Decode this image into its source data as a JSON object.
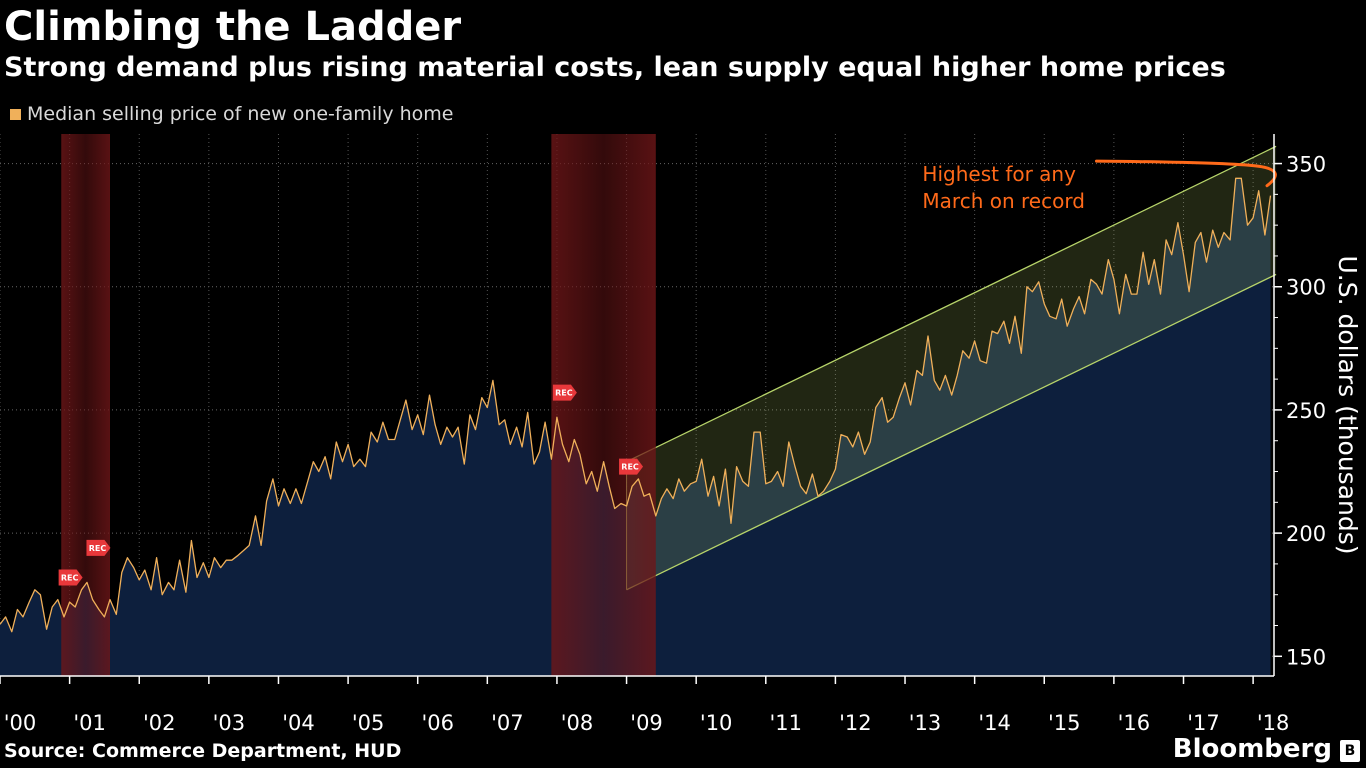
{
  "title": "Climbing the Ladder",
  "subtitle": "Strong demand plus rising material costs, lean supply equal higher home prices",
  "source": "Source: Commerce Department, HUD",
  "brand": "Bloomberg",
  "brand_icon": "B",
  "colors": {
    "line": "#f0b05a",
    "area": "#0d1f3d",
    "recession": "#6e1618",
    "channel": "#b7d46a",
    "annotation": "#ff6a1a",
    "rec_badge": "#e8383b"
  },
  "chart_data": {
    "type": "line",
    "legend": [
      {
        "label": "Median selling price of new one-family home",
        "color": "#f0b05a"
      }
    ],
    "ylabel": "U.S. dollars (thousands)",
    "ylim": [
      142,
      362
    ],
    "yticks": [
      150,
      200,
      250,
      300,
      350
    ],
    "xlim": [
      2000.0,
      2018.3
    ],
    "xticks": [
      "'00",
      "'01",
      "'02",
      "'03",
      "'04",
      "'05",
      "'06",
      "'07",
      "'08",
      "'09",
      "'10",
      "'11",
      "'12",
      "'13",
      "'14",
      "'15",
      "'16",
      "'17",
      "'18"
    ],
    "recessions": [
      [
        2000.88,
        2001.58
      ],
      [
        2007.92,
        2009.42
      ]
    ],
    "rec_markers": [
      {
        "x": 2001.0,
        "y": 182,
        "label": "REC"
      },
      {
        "x": 2001.4,
        "y": 194,
        "label": "REC"
      },
      {
        "x": 2008.1,
        "y": 257,
        "label": "REC"
      },
      {
        "x": 2009.05,
        "y": 227,
        "label": "REC"
      }
    ],
    "channel": {
      "x": [
        2009.0,
        2018.33
      ],
      "upper": [
        229,
        357
      ],
      "lower": [
        177,
        305
      ]
    },
    "annotation": {
      "text_lines": [
        "Highest for any",
        "March on record"
      ],
      "x": 2013.25,
      "y": 343
    },
    "series": [
      {
        "name": "Median selling price of new one-family home",
        "x": [
          2000.0,
          2000.08,
          2000.17,
          2000.25,
          2000.33,
          2000.42,
          2000.5,
          2000.58,
          2000.67,
          2000.75,
          2000.83,
          2000.92,
          2001.0,
          2001.08,
          2001.17,
          2001.25,
          2001.33,
          2001.42,
          2001.5,
          2001.58,
          2001.67,
          2001.75,
          2001.83,
          2001.92,
          2002.0,
          2002.08,
          2002.17,
          2002.25,
          2002.33,
          2002.42,
          2002.5,
          2002.58,
          2002.67,
          2002.75,
          2002.83,
          2002.92,
          2003.0,
          2003.08,
          2003.17,
          2003.25,
          2003.33,
          2003.42,
          2003.5,
          2003.58,
          2003.67,
          2003.75,
          2003.83,
          2003.92,
          2004.0,
          2004.08,
          2004.17,
          2004.25,
          2004.33,
          2004.42,
          2004.5,
          2004.58,
          2004.67,
          2004.75,
          2004.83,
          2004.92,
          2005.0,
          2005.08,
          2005.17,
          2005.25,
          2005.33,
          2005.42,
          2005.5,
          2005.58,
          2005.67,
          2005.75,
          2005.83,
          2005.92,
          2006.0,
          2006.08,
          2006.17,
          2006.25,
          2006.33,
          2006.42,
          2006.5,
          2006.58,
          2006.67,
          2006.75,
          2006.83,
          2006.92,
          2007.0,
          2007.08,
          2007.17,
          2007.25,
          2007.33,
          2007.42,
          2007.5,
          2007.58,
          2007.67,
          2007.75,
          2007.83,
          2007.92,
          2008.0,
          2008.08,
          2008.17,
          2008.25,
          2008.33,
          2008.42,
          2008.5,
          2008.58,
          2008.67,
          2008.75,
          2008.83,
          2008.92,
          2009.0,
          2009.08,
          2009.17,
          2009.25,
          2009.33,
          2009.42,
          2009.5,
          2009.58,
          2009.67,
          2009.75,
          2009.83,
          2009.92,
          2010.0,
          2010.08,
          2010.17,
          2010.25,
          2010.33,
          2010.42,
          2010.5,
          2010.58,
          2010.67,
          2010.75,
          2010.83,
          2010.92,
          2011.0,
          2011.08,
          2011.17,
          2011.25,
          2011.33,
          2011.42,
          2011.5,
          2011.58,
          2011.67,
          2011.75,
          2011.83,
          2011.92,
          2012.0,
          2012.08,
          2012.17,
          2012.25,
          2012.33,
          2012.42,
          2012.5,
          2012.58,
          2012.67,
          2012.75,
          2012.83,
          2012.92,
          2013.0,
          2013.08,
          2013.17,
          2013.25,
          2013.33,
          2013.42,
          2013.5,
          2013.58,
          2013.67,
          2013.75,
          2013.83,
          2013.92,
          2014.0,
          2014.08,
          2014.17,
          2014.25,
          2014.33,
          2014.42,
          2014.5,
          2014.58,
          2014.67,
          2014.75,
          2014.83,
          2014.92,
          2015.0,
          2015.08,
          2015.17,
          2015.25,
          2015.33,
          2015.42,
          2015.5,
          2015.58,
          2015.67,
          2015.75,
          2015.83,
          2015.92,
          2016.0,
          2016.08,
          2016.17,
          2016.25,
          2016.33,
          2016.42,
          2016.5,
          2016.58,
          2016.67,
          2016.75,
          2016.83,
          2016.92,
          2017.0,
          2017.08,
          2017.17,
          2017.25,
          2017.33,
          2017.42,
          2017.5,
          2017.58,
          2017.67,
          2017.75,
          2017.83,
          2017.92,
          2018.0,
          2018.08,
          2018.17,
          2018.25
        ],
        "values": [
          163,
          166,
          160,
          169,
          166,
          172,
          177,
          175,
          161,
          170,
          173,
          166,
          172,
          170,
          177,
          180,
          173,
          169,
          166,
          173,
          167,
          184,
          190,
          186,
          181,
          185,
          177,
          190,
          175,
          180,
          177,
          189,
          176,
          197,
          182,
          188,
          182,
          190,
          186,
          189,
          189,
          191,
          193,
          195,
          207,
          195,
          213,
          222,
          211,
          218,
          212,
          218,
          212,
          221,
          229,
          225,
          231,
          222,
          237,
          229,
          236,
          227,
          230,
          227,
          241,
          237,
          245,
          238,
          238,
          246,
          254,
          242,
          248,
          240,
          256,
          244,
          236,
          243,
          239,
          243,
          228,
          248,
          242,
          255,
          251,
          262,
          244,
          246,
          236,
          243,
          235,
          249,
          228,
          233,
          245,
          230,
          247,
          236,
          229,
          238,
          232,
          220,
          225,
          217,
          229,
          219,
          210,
          212,
          211,
          219,
          222,
          215,
          216,
          207,
          214,
          218,
          214,
          222,
          217,
          220,
          221,
          230,
          215,
          223,
          211,
          226,
          204,
          227,
          221,
          219,
          241,
          241,
          220,
          221,
          225,
          219,
          237,
          227,
          219,
          216,
          224,
          215,
          217,
          221,
          226,
          240,
          239,
          235,
          241,
          232,
          237,
          251,
          255,
          245,
          247,
          255,
          261,
          252,
          266,
          264,
          280,
          262,
          258,
          264,
          256,
          264,
          274,
          271,
          278,
          270,
          269,
          282,
          281,
          286,
          277,
          288,
          273,
          300,
          298,
          302,
          293,
          288,
          287,
          295,
          284,
          291,
          296,
          289,
          303,
          301,
          297,
          311,
          303,
          289,
          305,
          297,
          297,
          314,
          301,
          311,
          297,
          319,
          313,
          326,
          313,
          298,
          318,
          322,
          310,
          323,
          316,
          322,
          319,
          344,
          344,
          325,
          328,
          339,
          321,
          337
        ]
      }
    ]
  }
}
